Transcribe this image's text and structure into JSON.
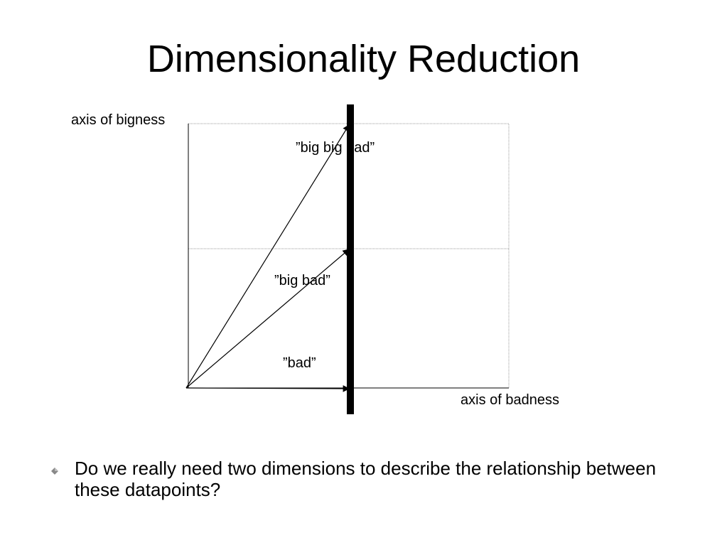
{
  "title": "Dimensionality Reduction",
  "diagram": {
    "y_axis_label": "axis of bigness",
    "x_axis_label": "axis of badness",
    "points": [
      {
        "label": "”big big bad”"
      },
      {
        "label": "”big bad”"
      },
      {
        "label": "”bad”"
      }
    ]
  },
  "bullets": [
    {
      "text": "Do we really need two dimensions to describe the relationship between these datapoints?"
    }
  ]
}
